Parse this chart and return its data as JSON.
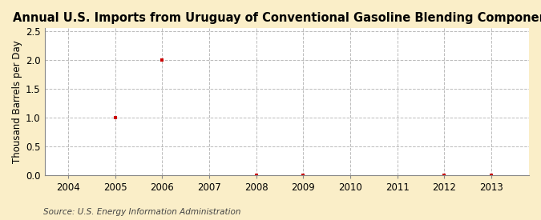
{
  "title": "Annual U.S. Imports from Uruguay of Conventional Gasoline Blending Components",
  "ylabel": "Thousand Barrels per Day",
  "source": "Source: U.S. Energy Information Administration",
  "xlim": [
    2003.5,
    2013.8
  ],
  "ylim": [
    0.0,
    2.55
  ],
  "yticks": [
    0.0,
    0.5,
    1.0,
    1.5,
    2.0,
    2.5
  ],
  "xticks": [
    2004,
    2005,
    2006,
    2007,
    2008,
    2009,
    2010,
    2011,
    2012,
    2013
  ],
  "data_x": [
    2005,
    2006,
    2008,
    2009,
    2012,
    2013
  ],
  "data_y": [
    1.0,
    2.0,
    0.0,
    0.0,
    0.0,
    0.0
  ],
  "marker_color": "#cc0000",
  "marker": "s",
  "marker_size": 3.5,
  "background_color": "#faeec8",
  "plot_bg_color": "#ffffff",
  "grid_color": "#aaaaaa",
  "grid_style": "--",
  "grid_alpha": 0.8,
  "title_fontsize": 10.5,
  "axis_label_fontsize": 8.5,
  "tick_fontsize": 8.5,
  "source_fontsize": 7.5
}
